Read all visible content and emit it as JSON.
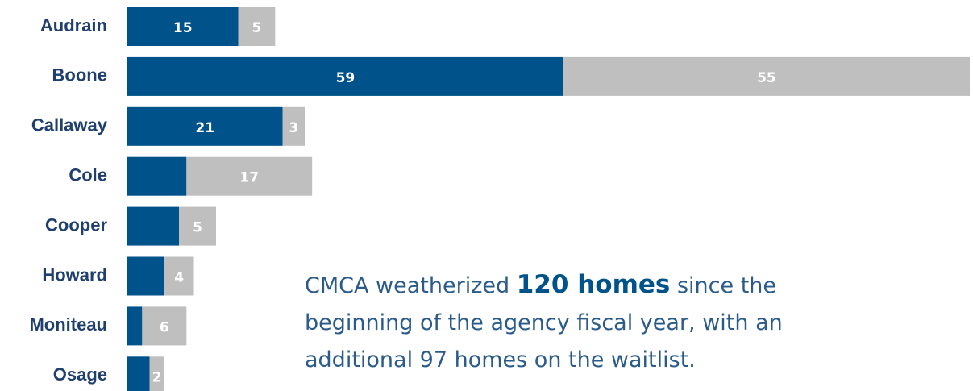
{
  "chart_data": {
    "type": "stacked-barh",
    "categories": [
      "Audrain",
      "Boone",
      "Callaway",
      "Cole",
      "Cooper",
      "Howard",
      "Moniteau",
      "Osage"
    ],
    "series": [
      {
        "color": "#00528a",
        "values": [
          15,
          59,
          21,
          8,
          7,
          5,
          2,
          3
        ],
        "value_labels": [
          "15",
          "59",
          "21",
          null,
          null,
          null,
          null,
          null
        ]
      },
      {
        "color": "#bfbfbf",
        "values": [
          5,
          55,
          3,
          17,
          5,
          4,
          6,
          2
        ],
        "value_labels": [
          "5",
          "55",
          "3",
          "17",
          "5",
          "4",
          "6",
          "2"
        ]
      }
    ],
    "xlim": [
      0,
      114
    ],
    "annotation": {
      "before": "CMCA weatherized",
      "highlight": "120 homes",
      "after": "since the beginning of the agency fiscal year, with an additional 97 homes on the waitlist."
    }
  }
}
